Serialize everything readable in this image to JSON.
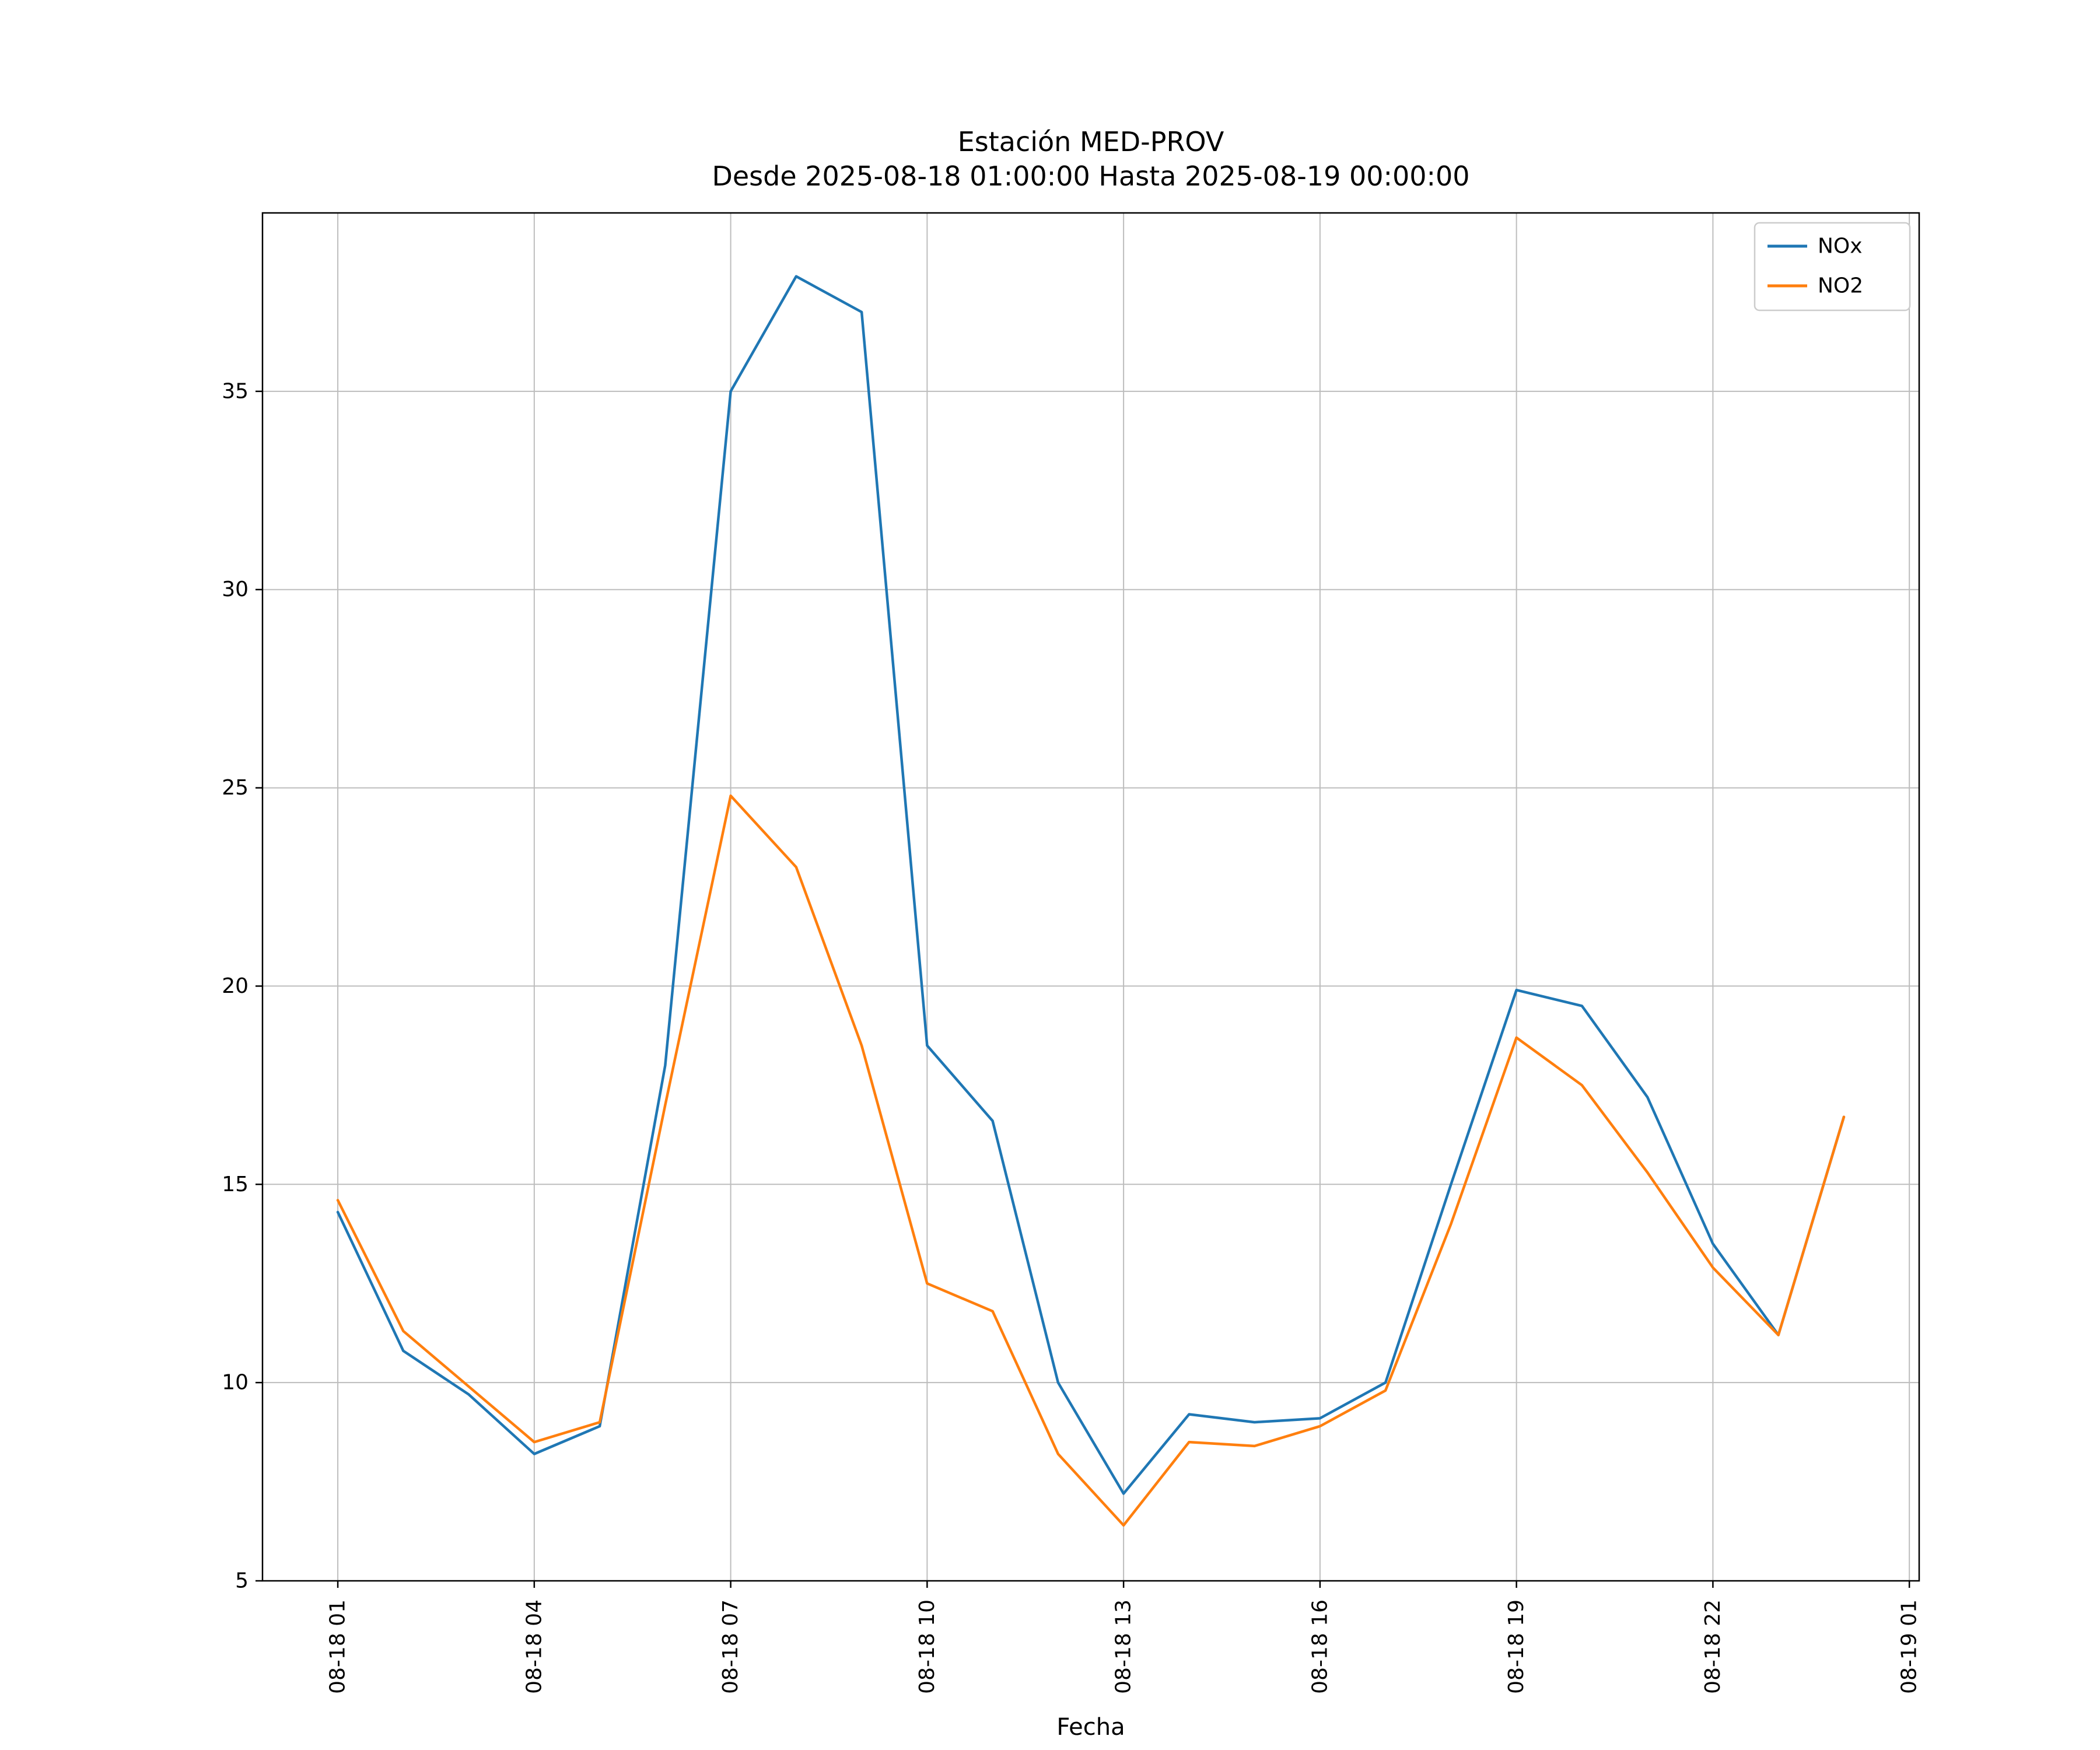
{
  "figure": {
    "title_line1": "Estación MED-PROV",
    "title_line2": "Desde 2025-08-18 01:00:00 Hasta 2025-08-19 00:00:00",
    "xlabel": "Fecha"
  },
  "chart_data": {
    "type": "line",
    "title": "Estación MED-PROV\nDesde 2025-08-18 01:00:00 Hasta 2025-08-19 00:00:00",
    "xlabel": "Fecha",
    "ylabel": "",
    "x_hours": [
      1,
      2,
      3,
      4,
      5,
      6,
      7,
      8,
      9,
      10,
      11,
      12,
      13,
      14,
      15,
      16,
      17,
      18,
      19,
      20,
      21,
      22,
      23,
      24
    ],
    "x_tick_hours": [
      1,
      4,
      7,
      10,
      13,
      16,
      19,
      22,
      25
    ],
    "x_tick_labels": [
      "08-18 01",
      "08-18 04",
      "08-18 07",
      "08-18 10",
      "08-18 13",
      "08-18 16",
      "08-18 19",
      "08-18 22",
      "08-19 01"
    ],
    "y_ticks": [
      5,
      10,
      15,
      20,
      25,
      30,
      35
    ],
    "ylim": [
      5,
      39.5
    ],
    "xlim": [
      -0.15,
      25.15
    ],
    "grid": true,
    "grid_color": "#bdbdbd",
    "legend": {
      "position": "top-right",
      "entries": [
        {
          "label": "NOx",
          "color": "#1f77b4"
        },
        {
          "label": "NO2",
          "color": "#ff7f0e"
        }
      ]
    },
    "series": [
      {
        "name": "NOx",
        "color": "#1f77b4",
        "values": [
          14.3,
          10.8,
          9.7,
          8.2,
          8.9,
          18.0,
          35.0,
          37.9,
          37.0,
          18.5,
          16.6,
          10.0,
          7.2,
          9.2,
          9.0,
          9.1,
          10.0,
          15.0,
          19.9,
          19.5,
          17.2,
          13.5,
          11.2,
          16.7
        ]
      },
      {
        "name": "NO2",
        "color": "#ff7f0e",
        "values": [
          14.6,
          11.3,
          9.9,
          8.5,
          9.0,
          17.0,
          24.8,
          23.0,
          18.5,
          12.5,
          11.8,
          8.2,
          6.4,
          8.5,
          8.4,
          8.9,
          9.8,
          14.0,
          18.7,
          17.5,
          15.3,
          12.9,
          11.2,
          16.7
        ]
      }
    ]
  }
}
